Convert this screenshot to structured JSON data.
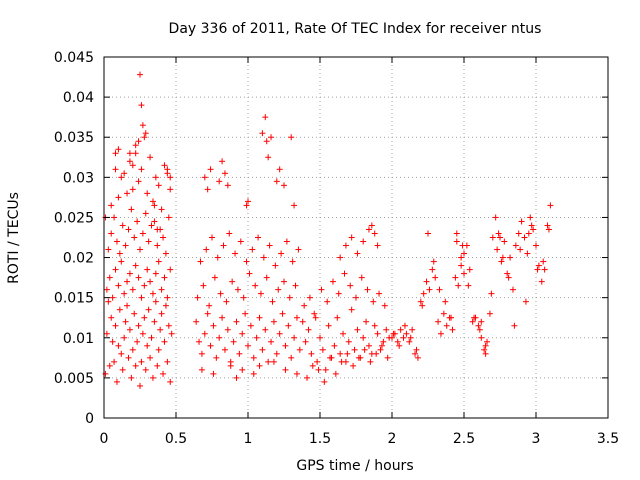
{
  "chart_data": {
    "type": "scatter",
    "title": "Day 336 of 2011, Rate Of TEC Index for receiver ntus",
    "xlabel": "GPS time / hours",
    "ylabel": "ROTI / TECUs",
    "xlim": [
      0,
      3.5
    ],
    "ylim": [
      0,
      0.045
    ],
    "grid": true,
    "marker": "+",
    "color": "#ff0000",
    "x_ticks": [
      "0",
      "0.5",
      "1",
      "1.5",
      "2",
      "2.5",
      "3",
      "3.5"
    ],
    "y_ticks": [
      "0",
      "0.005",
      "0.01",
      "0.015",
      "0.02",
      "0.025",
      "0.03",
      "0.035",
      "0.04",
      "0.045"
    ],
    "series": [
      {
        "x": [
          0.01,
          0.02,
          0.03,
          0.04,
          0.05,
          0.06,
          0.07,
          0.08,
          0.09,
          0.1,
          0.11,
          0.12,
          0.13,
          0.14,
          0.15,
          0.16,
          0.17,
          0.18,
          0.19,
          0.2,
          0.21,
          0.22,
          0.23,
          0.24,
          0.25,
          0.26,
          0.27,
          0.28,
          0.29,
          0.3,
          0.31,
          0.32,
          0.33,
          0.34,
          0.35,
          0.36,
          0.37,
          0.38,
          0.39,
          0.4,
          0.41,
          0.42,
          0.43,
          0.44,
          0.45,
          0.46,
          0.47,
          0.02,
          0.04,
          0.06,
          0.08,
          0.1,
          0.12,
          0.14,
          0.16,
          0.18,
          0.2,
          0.22,
          0.24,
          0.26,
          0.28,
          0.3,
          0.32,
          0.34,
          0.36,
          0.38,
          0.4,
          0.42,
          0.44,
          0.46,
          0.03,
          0.05,
          0.07,
          0.09,
          0.11,
          0.13,
          0.15,
          0.17,
          0.19,
          0.21,
          0.23,
          0.25,
          0.27,
          0.29,
          0.31,
          0.33,
          0.35,
          0.37,
          0.39,
          0.41,
          0.43,
          0.45,
          0.01,
          0.05,
          0.08,
          0.1,
          0.12,
          0.16,
          0.18,
          0.2,
          0.22,
          0.24,
          0.26,
          0.28,
          0.3,
          0.32,
          0.34,
          0.36,
          0.38,
          0.4,
          0.42,
          0.44,
          0.46,
          0.25,
          0.26,
          0.27,
          0.24,
          0.29,
          0.22,
          0.2,
          0.18,
          0.14,
          0.1,
          0.08,
          0.35,
          0.37,
          0.46,
          0.44,
          0.64,
          0.66,
          0.68,
          0.7,
          0.72,
          0.74,
          0.76,
          0.78,
          0.8,
          0.82,
          0.84,
          0.86,
          0.88,
          0.9,
          0.92,
          0.94,
          0.96,
          0.98,
          1.0,
          1.02,
          1.04,
          1.06,
          1.08,
          1.1,
          1.12,
          1.14,
          1.16,
          1.18,
          1.2,
          1.22,
          1.24,
          1.26,
          1.28,
          1.3,
          1.32,
          1.34,
          1.36,
          0.65,
          0.69,
          0.73,
          0.77,
          0.81,
          0.85,
          0.89,
          0.93,
          0.97,
          1.01,
          1.05,
          1.09,
          1.13,
          1.17,
          1.21,
          1.25,
          1.29,
          1.33,
          0.67,
          0.71,
          0.75,
          0.79,
          0.83,
          0.87,
          0.91,
          0.95,
          0.99,
          1.03,
          1.07,
          1.11,
          1.15,
          1.19,
          1.23,
          1.27,
          1.31,
          1.35,
          0.7,
          0.72,
          0.74,
          0.8,
          0.82,
          0.84,
          0.86,
          0.99,
          1.0,
          1.1,
          1.12,
          1.13,
          1.14,
          1.16,
          1.2,
          1.22,
          1.25,
          1.3,
          1.32,
          0.68,
          0.76,
          0.88,
          0.92,
          0.96,
          1.04,
          1.08,
          1.18,
          1.26,
          1.34,
          1.38,
          1.4,
          1.42,
          1.44,
          1.46,
          1.48,
          1.5,
          1.52,
          1.54,
          1.56,
          1.58,
          1.6,
          1.62,
          1.64,
          1.66,
          1.68,
          1.7,
          1.72,
          1.74,
          1.76,
          1.78,
          1.8,
          1.82,
          1.84,
          1.86,
          1.88,
          1.9,
          1.92,
          1.94,
          1.96,
          1.98,
          1.39,
          1.43,
          1.47,
          1.51,
          1.55,
          1.59,
          1.63,
          1.67,
          1.71,
          1.75,
          1.79,
          1.83,
          1.87,
          1.91,
          1.95,
          1.41,
          1.45,
          1.49,
          1.53,
          1.57,
          1.61,
          1.65,
          1.69,
          1.73,
          1.77,
          1.81,
          1.85,
          1.89,
          1.93,
          1.97,
          1.64,
          1.68,
          1.72,
          1.76,
          1.8,
          1.84,
          1.86,
          1.88,
          1.9,
          2.0,
          2.02,
          2.04,
          2.06,
          2.08,
          2.1,
          2.12,
          2.14,
          2.16,
          2.18,
          2.2,
          2.22,
          2.24,
          2.26,
          2.28,
          2.3,
          2.32,
          2.34,
          2.36,
          2.38,
          2.4,
          2.42,
          2.44,
          2.46,
          2.48,
          2.5,
          2.52,
          2.54,
          2.56,
          2.58,
          2.6,
          2.62,
          2.64,
          2.66,
          2.01,
          2.05,
          2.09,
          2.13,
          2.17,
          2.21,
          2.25,
          2.29,
          2.33,
          2.37,
          2.41,
          2.45,
          2.49,
          2.53,
          2.57,
          2.61,
          2.65,
          2.68,
          2.7,
          2.72,
          2.74,
          2.76,
          2.78,
          2.8,
          2.82,
          2.84,
          2.86,
          2.88,
          2.9,
          2.92,
          2.94,
          2.96,
          2.98,
          3.0,
          3.02,
          3.04,
          3.06,
          3.08,
          3.1,
          2.69,
          2.73,
          2.77,
          2.81,
          2.85,
          2.89,
          2.93,
          2.97,
          3.01,
          3.05,
          3.09,
          2.45,
          2.48,
          2.5,
          2.62,
          2.65,
          2.75,
          2.95
        ],
        "y": [
          0.0055,
          0.0105,
          0.0145,
          0.0065,
          0.0125,
          0.0095,
          0.007,
          0.0115,
          0.0045,
          0.009,
          0.0135,
          0.008,
          0.006,
          0.01,
          0.012,
          0.014,
          0.0075,
          0.011,
          0.005,
          0.0085,
          0.013,
          0.0065,
          0.0095,
          0.0115,
          0.004,
          0.007,
          0.0105,
          0.0125,
          0.006,
          0.009,
          0.0135,
          0.0075,
          0.01,
          0.005,
          0.012,
          0.0145,
          0.0065,
          0.0085,
          0.011,
          0.013,
          0.0055,
          0.0095,
          0.014,
          0.007,
          0.0115,
          0.0045,
          0.0105,
          0.016,
          0.0175,
          0.015,
          0.0185,
          0.0165,
          0.0195,
          0.0155,
          0.017,
          0.018,
          0.016,
          0.019,
          0.0175,
          0.015,
          0.0165,
          0.0185,
          0.017,
          0.0155,
          0.018,
          0.0195,
          0.016,
          0.0175,
          0.015,
          0.0185,
          0.021,
          0.023,
          0.025,
          0.022,
          0.0205,
          0.024,
          0.0215,
          0.0235,
          0.026,
          0.0225,
          0.0245,
          0.021,
          0.023,
          0.0255,
          0.022,
          0.024,
          0.0265,
          0.0215,
          0.0235,
          0.0225,
          0.0205,
          0.025,
          0.025,
          0.0265,
          0.033,
          0.0275,
          0.03,
          0.028,
          0.032,
          0.0285,
          0.034,
          0.0295,
          0.031,
          0.035,
          0.028,
          0.0325,
          0.027,
          0.03,
          0.029,
          0.026,
          0.0315,
          0.0305,
          0.0285,
          0.0428,
          0.039,
          0.0365,
          0.0345,
          0.0355,
          0.033,
          0.0315,
          0.033,
          0.0305,
          0.0335,
          0.031,
          0.0245,
          0.0235,
          0.03,
          0.031,
          0.012,
          0.0095,
          0.008,
          0.0105,
          0.013,
          0.009,
          0.0115,
          0.0075,
          0.01,
          0.0125,
          0.0085,
          0.011,
          0.007,
          0.0095,
          0.012,
          0.008,
          0.0105,
          0.013,
          0.009,
          0.0115,
          0.0075,
          0.01,
          0.0125,
          0.0085,
          0.011,
          0.007,
          0.0095,
          0.012,
          0.008,
          0.0105,
          0.013,
          0.009,
          0.0115,
          0.0075,
          0.01,
          0.0125,
          0.0085,
          0.015,
          0.0165,
          0.014,
          0.0175,
          0.0155,
          0.0145,
          0.017,
          0.016,
          0.015,
          0.018,
          0.0165,
          0.0155,
          0.0175,
          0.0145,
          0.016,
          0.017,
          0.015,
          0.0165,
          0.0195,
          0.021,
          0.0225,
          0.02,
          0.0215,
          0.023,
          0.0205,
          0.022,
          0.0195,
          0.021,
          0.0225,
          0.02,
          0.0215,
          0.019,
          0.0205,
          0.022,
          0.0195,
          0.021,
          0.03,
          0.0285,
          0.031,
          0.0295,
          0.032,
          0.0305,
          0.029,
          0.0265,
          0.027,
          0.0355,
          0.0375,
          0.0345,
          0.0325,
          0.035,
          0.0295,
          0.031,
          0.029,
          0.035,
          0.0265,
          0.006,
          0.0055,
          0.0065,
          0.005,
          0.006,
          0.0055,
          0.0065,
          0.007,
          0.006,
          0.0055,
          0.012,
          0.0095,
          0.011,
          0.008,
          0.013,
          0.007,
          0.01,
          0.0085,
          0.006,
          0.0115,
          0.0075,
          0.009,
          0.0125,
          0.008,
          0.0105,
          0.007,
          0.0095,
          0.0135,
          0.0085,
          0.011,
          0.0075,
          0.01,
          0.012,
          0.009,
          0.008,
          0.0115,
          0.0105,
          0.0085,
          0.0095,
          0.011,
          0.01,
          0.014,
          0.015,
          0.0125,
          0.016,
          0.0145,
          0.017,
          0.0155,
          0.018,
          0.0165,
          0.015,
          0.0175,
          0.016,
          0.0145,
          0.0155,
          0.014,
          0.005,
          0.0065,
          0.006,
          0.0045,
          0.0075,
          0.0055,
          0.007,
          0.008,
          0.0065,
          0.0075,
          0.0085,
          0.007,
          0.008,
          0.009,
          0.0075,
          0.02,
          0.0215,
          0.0225,
          0.0205,
          0.022,
          0.0235,
          0.024,
          0.023,
          0.0215,
          0.01,
          0.0105,
          0.0095,
          0.011,
          0.01,
          0.0105,
          0.0095,
          0.011,
          0.008,
          0.0075,
          0.0145,
          0.0155,
          0.017,
          0.016,
          0.0185,
          0.0175,
          0.012,
          0.0105,
          0.013,
          0.0115,
          0.0125,
          0.011,
          0.0175,
          0.0165,
          0.019,
          0.0205,
          0.0215,
          0.0185,
          0.012,
          0.0125,
          0.0115,
          0.01,
          0.0085,
          0.0095,
          0.0105,
          0.009,
          0.0115,
          0.01,
          0.0085,
          0.014,
          0.023,
          0.0195,
          0.016,
          0.0145,
          0.0125,
          0.023,
          0.0215,
          0.0165,
          0.0125,
          0.011,
          0.008,
          0.013,
          0.0225,
          0.025,
          0.023,
          0.0195,
          0.022,
          0.018,
          0.02,
          0.016,
          0.0215,
          0.023,
          0.0245,
          0.0225,
          0.0205,
          0.025,
          0.0235,
          0.0215,
          0.019,
          0.017,
          0.0185,
          0.024,
          0.0265,
          0.0155,
          0.021,
          0.02,
          0.0175,
          0.0115,
          0.021,
          0.0145,
          0.024,
          0.0185,
          0.0195,
          0.0235,
          0.022,
          0.02,
          0.018,
          0.012,
          0.009,
          0.0225,
          0.023
        ]
      }
    ]
  }
}
